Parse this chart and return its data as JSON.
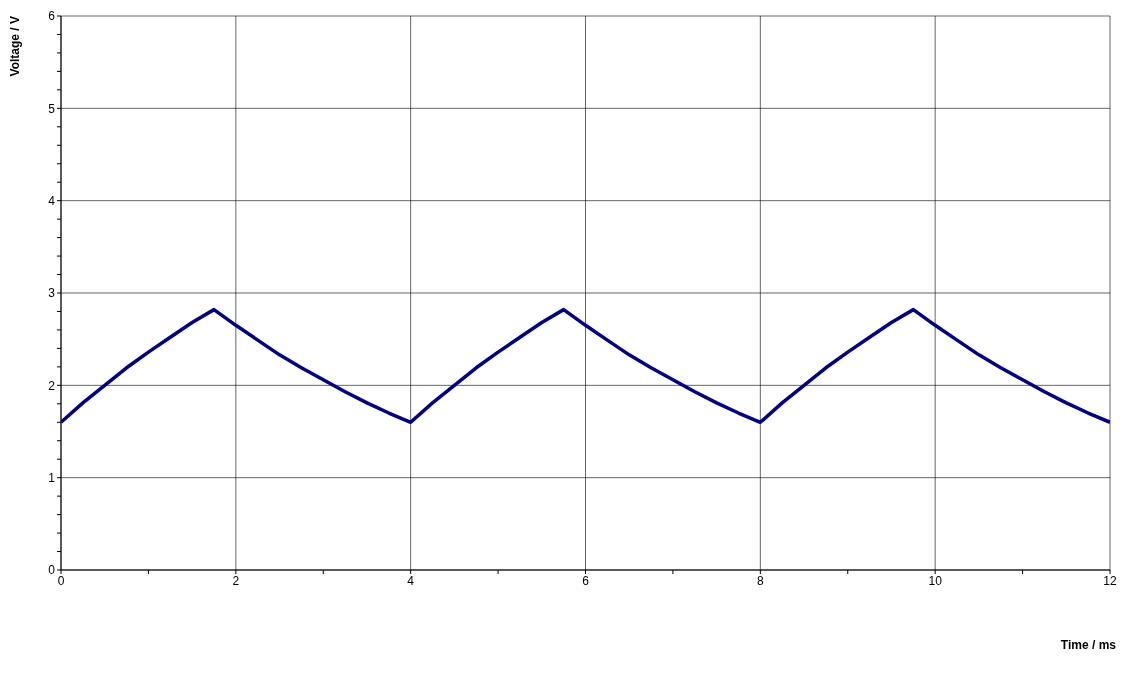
{
  "chart_data": {
    "type": "line",
    "xlabel": "Time / ms",
    "ylabel": "Voltage / V",
    "xlim": [
      0,
      12
    ],
    "ylim": [
      0,
      6
    ],
    "xticks": [
      0,
      {
        "value": 1,
        "label": null
      },
      2,
      {
        "value": 3,
        "label": null
      },
      4,
      {
        "value": 5,
        "label": null
      },
      6,
      {
        "value": 7,
        "label": null
      },
      8,
      {
        "value": 9,
        "label": null
      },
      10,
      {
        "value": 11,
        "label": null
      },
      12
    ],
    "yticks": [
      0,
      {
        "value": 0.2,
        "label": null
      },
      {
        "value": 0.4,
        "label": null
      },
      {
        "value": 0.6,
        "label": null
      },
      {
        "value": 0.8,
        "label": null
      },
      1,
      {
        "value": 1.2,
        "label": null
      },
      {
        "value": 1.4,
        "label": null
      },
      {
        "value": 1.6,
        "label": null
      },
      {
        "value": 1.8,
        "label": null
      },
      2,
      {
        "value": 2.2,
        "label": null
      },
      {
        "value": 2.4,
        "label": null
      },
      {
        "value": 2.6,
        "label": null
      },
      {
        "value": 2.8,
        "label": null
      },
      3,
      {
        "value": 3.2,
        "label": null
      },
      {
        "value": 3.4,
        "label": null
      },
      {
        "value": 3.6,
        "label": null
      },
      {
        "value": 3.8,
        "label": null
      },
      4,
      {
        "value": 4.2,
        "label": null
      },
      {
        "value": 4.4,
        "label": null
      },
      {
        "value": 4.6,
        "label": null
      },
      {
        "value": 4.8,
        "label": null
      },
      5,
      {
        "value": 5.2,
        "label": null
      },
      {
        "value": 5.4,
        "label": null
      },
      {
        "value": 5.6,
        "label": null
      },
      {
        "value": 5.8,
        "label": null
      },
      6
    ],
    "grid": true,
    "series": [
      {
        "color": "#000080",
        "x": [
          0,
          0.25,
          0.5,
          0.75,
          1,
          1.25,
          1.5,
          1.75,
          2,
          2.25,
          2.5,
          2.75,
          3,
          3.25,
          3.5,
          3.75,
          4,
          4.25,
          4.5,
          4.75,
          5,
          5.25,
          5.5,
          5.75,
          6,
          6.25,
          6.5,
          6.75,
          7,
          7.25,
          7.5,
          7.75,
          8,
          8.25,
          8.5,
          8.75,
          9,
          9.25,
          9.5,
          9.75,
          10,
          10.25,
          10.5,
          10.75,
          11,
          11.25,
          11.5,
          11.75,
          12
        ],
        "values": [
          1.6,
          1.81,
          2.0,
          2.19,
          2.36,
          2.52,
          2.68,
          2.82,
          2.65,
          2.49,
          2.33,
          2.19,
          2.06,
          1.93,
          1.81,
          1.7,
          1.6,
          1.81,
          2.0,
          2.19,
          2.36,
          2.52,
          2.68,
          2.82,
          2.65,
          2.49,
          2.33,
          2.19,
          2.06,
          1.93,
          1.81,
          1.7,
          1.6,
          1.81,
          2.0,
          2.19,
          2.36,
          2.52,
          2.68,
          2.82,
          2.65,
          2.49,
          2.33,
          2.19,
          2.06,
          1.93,
          1.81,
          1.7,
          1.6
        ]
      }
    ]
  }
}
